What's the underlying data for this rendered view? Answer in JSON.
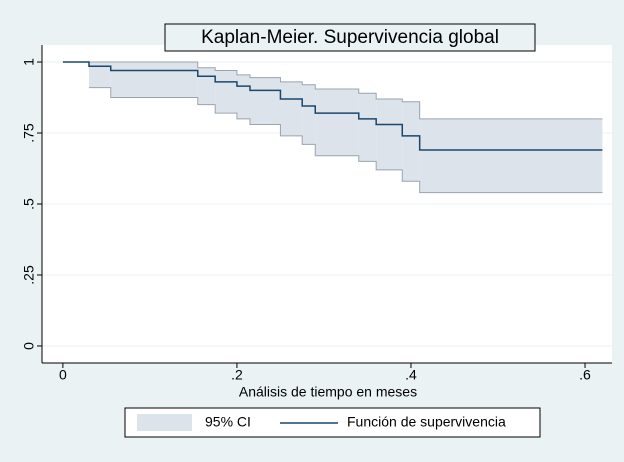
{
  "chart_data": {
    "type": "line",
    "step": true,
    "title": "Kaplan-Meier. Supervivencia global",
    "x_label": "Análisis de tiempo en meses",
    "x": [
      0,
      0.03,
      0.055,
      0.155,
      0.175,
      0.2,
      0.215,
      0.25,
      0.275,
      0.29,
      0.34,
      0.36,
      0.39,
      0.41,
      0.62
    ],
    "series": [
      {
        "name": "95% CI",
        "color": "#dde3ea",
        "lower": [
          null,
          0.91,
          0.875,
          0.85,
          0.82,
          0.8,
          0.78,
          0.74,
          0.71,
          0.67,
          0.65,
          0.62,
          0.58,
          0.54,
          0.54
        ],
        "upper": [
          null,
          1,
          1,
          0.98,
          0.97,
          0.955,
          0.945,
          0.93,
          0.92,
          0.905,
          0.89,
          0.87,
          0.86,
          0.8,
          0.8
        ]
      },
      {
        "name": "Función de supervivencia",
        "color": "#1a476f",
        "values": [
          1,
          0.985,
          0.97,
          0.95,
          0.93,
          0.915,
          0.9,
          0.87,
          0.845,
          0.82,
          0.8,
          0.78,
          0.74,
          0.69,
          0.69
        ]
      }
    ],
    "xlim": [
      -0.024,
      0.631
    ],
    "ylim": [
      -0.06,
      1.06
    ],
    "xticks": [
      0,
      {
        "value": 0.2,
        "label": ".2"
      },
      {
        "value": 0.4,
        "label": ".4"
      },
      {
        "value": 0.6,
        "label": ".6"
      }
    ],
    "yticks": [
      0,
      {
        "value": 0.25,
        "label": ".25"
      },
      {
        "value": 0.5,
        "label": ".5"
      },
      {
        "value": 0.75,
        "label": ".75"
      },
      1
    ],
    "grid": true
  }
}
